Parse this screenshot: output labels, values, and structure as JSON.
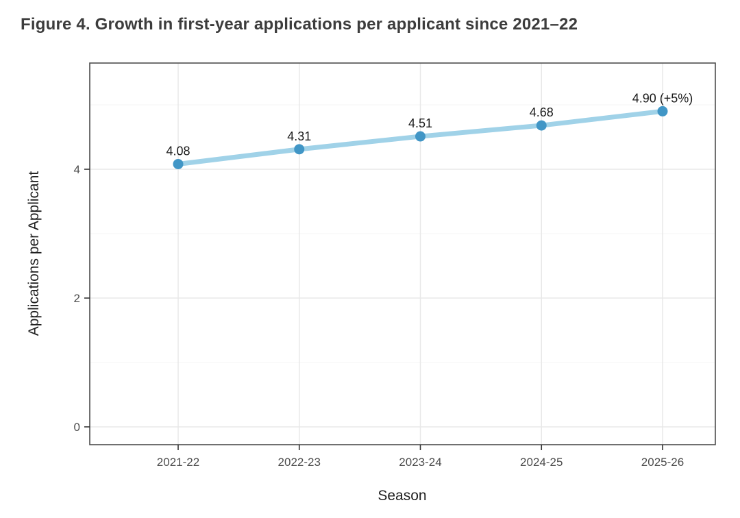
{
  "figure": {
    "title": "Figure 4. Growth in first-year applications per applicant since 2021–22"
  },
  "chart_data": {
    "type": "line",
    "title": "Figure 4. Growth in first-year applications per applicant since 2021–22",
    "xlabel": "Season",
    "ylabel": "Applications per Applicant",
    "categories": [
      "2021-22",
      "2022-23",
      "2023-24",
      "2024-25",
      "2025-26"
    ],
    "series": [
      {
        "name": "Applications per Applicant",
        "values": [
          4.08,
          4.31,
          4.51,
          4.68,
          4.9
        ],
        "point_labels": [
          "4.08",
          "4.31",
          "4.51",
          "4.68",
          "4.90 (+5%)"
        ]
      }
    ],
    "ylim": [
      -0.28,
      5.65
    ],
    "yticks": [
      0,
      2,
      4
    ],
    "ytick_labels": [
      "0",
      "2",
      "4"
    ],
    "yticks_minor": [
      1,
      3,
      5
    ],
    "grid": "major-and-minor-horizontal, major-vertical",
    "legend_position": "none",
    "colors": {
      "line": "#A0D2E8",
      "point": "#4196C6",
      "grid_major": "#e8e8e8",
      "grid_minor": "#f4f4f4",
      "panel_border": "#4d4d4d",
      "panel_background": "#ffffff",
      "tick_text": "#4d4d4d",
      "axis_title_text": "#1f1f1f",
      "point_label_text": "#1a1a1a",
      "title_text": "#3c3c3c"
    }
  }
}
